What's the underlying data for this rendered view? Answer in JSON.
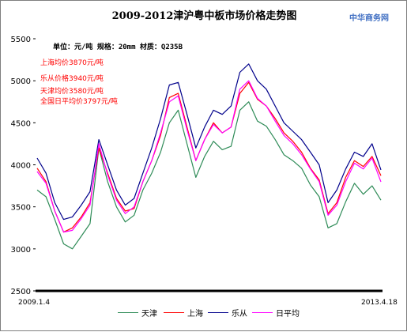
{
  "title": "2009-2012津沪粤中板市场价格走势图",
  "source": "中华商务网",
  "unit_line": "单位：元/吨 规格：20mm 材质：Q235B",
  "annotations": [
    {
      "text": "上海均价3870元/吨",
      "color": "#ff0000"
    },
    {
      "text": "乐从价格3940元/吨",
      "color": "#ff0000"
    },
    {
      "text": "天津均价3580元/吨",
      "color": "#ff0000"
    },
    {
      "text": "全国日平均价3797元/吨",
      "color": "#ff0000"
    }
  ],
  "chart_data": {
    "type": "line",
    "x_start_label": "2009.1.4",
    "x_end_label": "2013.4.18",
    "ylim": [
      2500,
      5500
    ],
    "yticks": [
      2500,
      3000,
      3500,
      4000,
      4500,
      5000,
      5500
    ],
    "grid": false,
    "legend_position": "bottom",
    "n_points": 40,
    "series": [
      {
        "name": "天津",
        "color": "#2e8b57",
        "values": [
          3700,
          3620,
          3350,
          3060,
          3000,
          3150,
          3300,
          4200,
          3800,
          3500,
          3320,
          3400,
          3700,
          3900,
          4150,
          4500,
          4650,
          4250,
          3850,
          4100,
          4280,
          4180,
          4220,
          4650,
          4750,
          4520,
          4460,
          4300,
          4120,
          4050,
          3960,
          3760,
          3620,
          3250,
          3300,
          3560,
          3780,
          3650,
          3750,
          3580
        ]
      },
      {
        "name": "上海",
        "color": "#ff0000",
        "values": [
          3960,
          3800,
          3450,
          3200,
          3250,
          3380,
          3550,
          4200,
          3900,
          3600,
          3450,
          3480,
          3800,
          4050,
          4350,
          4800,
          4850,
          4450,
          4050,
          4300,
          4500,
          4380,
          4450,
          4850,
          4980,
          4780,
          4700,
          4550,
          4380,
          4280,
          4150,
          3960,
          3820,
          3420,
          3550,
          3850,
          4050,
          3980,
          4100,
          3870
        ]
      },
      {
        "name": "乐从",
        "color": "#00008b",
        "values": [
          4080,
          3900,
          3550,
          3350,
          3380,
          3520,
          3680,
          4300,
          4000,
          3700,
          3520,
          3600,
          3900,
          4200,
          4550,
          4950,
          4980,
          4600,
          4200,
          4450,
          4650,
          4600,
          4700,
          5100,
          5200,
          5000,
          4900,
          4700,
          4500,
          4400,
          4300,
          4150,
          4000,
          3550,
          3700,
          3950,
          4150,
          4100,
          4250,
          3940
        ]
      },
      {
        "name": "日平均",
        "color": "#ff00ff",
        "values": [
          3920,
          3780,
          3450,
          3200,
          3220,
          3360,
          3520,
          4250,
          3880,
          3580,
          3420,
          3500,
          3800,
          4050,
          4380,
          4750,
          4820,
          4420,
          4050,
          4300,
          4480,
          4380,
          4450,
          4900,
          5000,
          4790,
          4700,
          4520,
          4350,
          4250,
          4120,
          3950,
          3800,
          3400,
          3520,
          3800,
          4020,
          3950,
          4080,
          3797
        ]
      }
    ]
  }
}
